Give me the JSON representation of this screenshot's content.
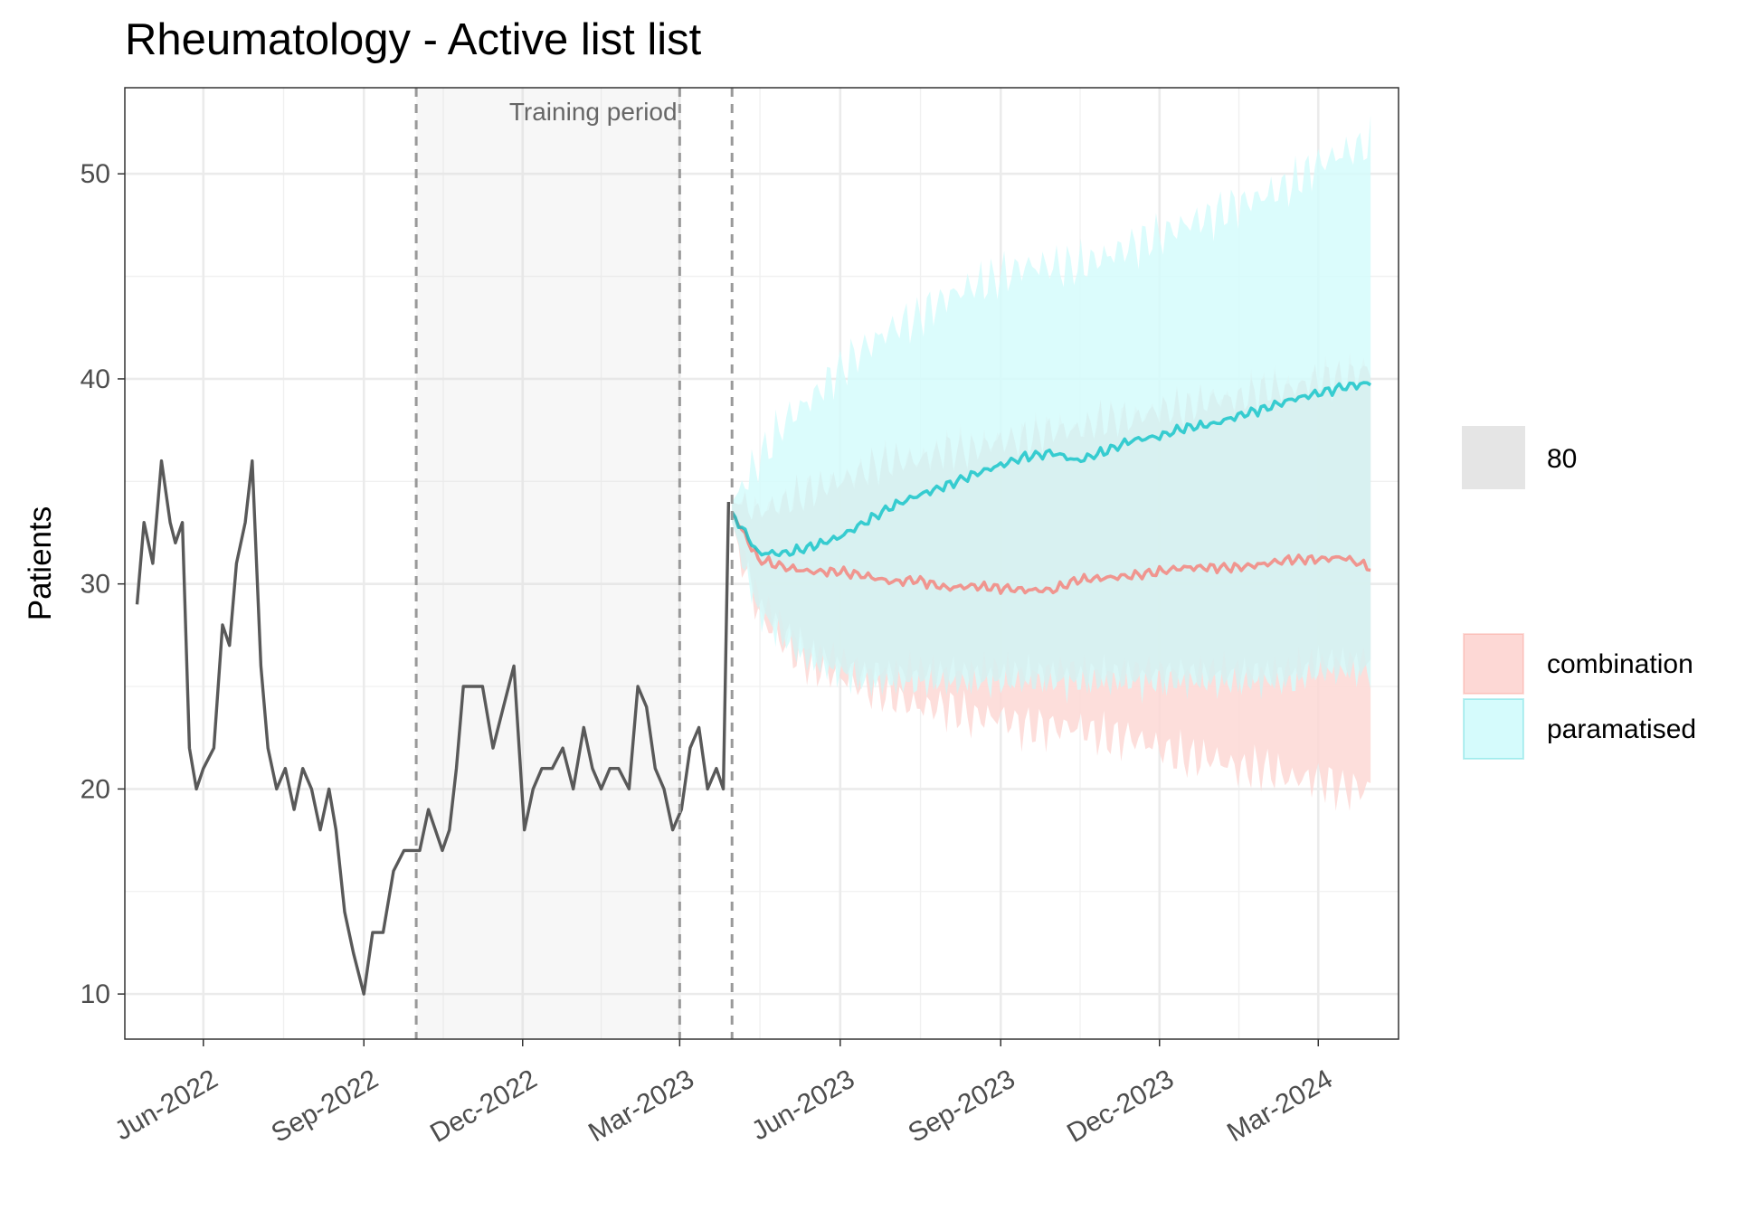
{
  "chart_data": {
    "type": "line",
    "title": "Rheumatology - Active list list",
    "xlabel": "",
    "ylabel": "Patients",
    "x_ticks": [
      "Jun-2022",
      "Sep-2022",
      "Dec-2022",
      "Mar-2023",
      "Jun-2023",
      "Sep-2023",
      "Dec-2023",
      "Mar-2024"
    ],
    "x_tick_dates": [
      "2022-06-01",
      "2022-09-01",
      "2022-12-01",
      "2023-03-01",
      "2023-06-01",
      "2023-09-01",
      "2023-12-01",
      "2024-03-01"
    ],
    "xlim": [
      "2022-04-17",
      "2024-04-16"
    ],
    "y_ticks": [
      "10",
      "20",
      "30",
      "40",
      "50"
    ],
    "ylim": [
      7.8,
      54.2
    ],
    "grid": true,
    "legend_position": "right",
    "annotation": {
      "text": "Training period",
      "start": "2022-10-01",
      "end": "2023-03-01"
    },
    "vlines": [
      "2022-10-01",
      "2023-03-01",
      "2023-03-31"
    ],
    "observed": {
      "color": "#595959",
      "dates": [
        "2022-04-24",
        "2022-04-28",
        "2022-05-03",
        "2022-05-08",
        "2022-05-13",
        "2022-05-16",
        "2022-05-20",
        "2022-05-24",
        "2022-05-28",
        "2022-06-01",
        "2022-06-07",
        "2022-06-12",
        "2022-06-16",
        "2022-06-20",
        "2022-06-25",
        "2022-06-29",
        "2022-07-04",
        "2022-07-08",
        "2022-07-13",
        "2022-07-18",
        "2022-07-23",
        "2022-07-28",
        "2022-08-02",
        "2022-08-07",
        "2022-08-12",
        "2022-08-16",
        "2022-08-21",
        "2022-08-26",
        "2022-09-01",
        "2022-09-06",
        "2022-09-12",
        "2022-09-18",
        "2022-09-24",
        "2022-09-29",
        "2022-10-03",
        "2022-10-08",
        "2022-10-12",
        "2022-10-16",
        "2022-10-20",
        "2022-10-24",
        "2022-10-28",
        "2022-11-02",
        "2022-11-08",
        "2022-11-14",
        "2022-11-20",
        "2022-11-26",
        "2022-12-02",
        "2022-12-07",
        "2022-12-12",
        "2022-12-18",
        "2022-12-24",
        "2022-12-30",
        "2023-01-05",
        "2023-01-10",
        "2023-01-15",
        "2023-01-20",
        "2023-01-25",
        "2023-01-31",
        "2023-02-05",
        "2023-02-10",
        "2023-02-15",
        "2023-02-20",
        "2023-02-25",
        "2023-03-02",
        "2023-03-07",
        "2023-03-12",
        "2023-03-17",
        "2023-03-22",
        "2023-03-26",
        "2023-03-29"
      ],
      "values": [
        29,
        33,
        31,
        36,
        33,
        32,
        33,
        22,
        20,
        21,
        22,
        28,
        27,
        31,
        33,
        36,
        26,
        22,
        20,
        21,
        19,
        21,
        20,
        18,
        20,
        18,
        14,
        12,
        10,
        13,
        13,
        16,
        17,
        17,
        17,
        19,
        18,
        17,
        18,
        21,
        25,
        25,
        25,
        22,
        24,
        26,
        18,
        20,
        21,
        21,
        22,
        20,
        23,
        21,
        20,
        21,
        21,
        20,
        25,
        24,
        21,
        20,
        18,
        19,
        22,
        23,
        20,
        21,
        20,
        34
      ]
    },
    "series": [
      {
        "name": "combination",
        "color": "#F8766D",
        "band_color": "#FDD8D5",
        "dates": [
          "2023-03-31",
          "2023-04-15",
          "2023-05-01",
          "2023-05-15",
          "2023-06-01",
          "2023-06-15",
          "2023-07-01",
          "2023-07-15",
          "2023-08-01",
          "2023-08-15",
          "2023-09-01",
          "2023-09-15",
          "2023-10-01",
          "2023-10-15",
          "2023-11-01",
          "2023-11-15",
          "2023-12-01",
          "2023-12-15",
          "2024-01-01",
          "2024-01-15",
          "2024-02-01",
          "2024-02-15",
          "2024-03-01",
          "2024-03-15",
          "2024-03-31"
        ],
        "values": [
          33.5,
          31.2,
          30.8,
          30.6,
          30.6,
          30.4,
          30.1,
          30.2,
          29.8,
          29.9,
          29.8,
          29.7,
          29.7,
          30.2,
          30.3,
          30.4,
          30.6,
          30.8,
          30.8,
          30.8,
          31.0,
          31.2,
          31.2,
          31.3,
          30.8
        ],
        "lower": [
          33.0,
          28.5,
          27.0,
          26.0,
          25.5,
          25.0,
          24.5,
          24.0,
          24.0,
          23.5,
          23.5,
          23.0,
          23.0,
          23.0,
          22.5,
          22.5,
          22.0,
          21.5,
          21.5,
          21.0,
          21.0,
          20.5,
          20.5,
          20.0,
          20.0
        ],
        "upper": [
          34.0,
          33.5,
          34.0,
          34.5,
          35.0,
          35.5,
          36.0,
          36.0,
          36.5,
          36.5,
          37.0,
          37.0,
          37.5,
          37.5,
          38.0,
          38.0,
          38.5,
          38.5,
          39.0,
          39.0,
          39.5,
          39.5,
          40.0,
          40.0,
          40.5
        ]
      },
      {
        "name": "paramatised",
        "color": "#00BFC4",
        "band_color": "#D5FBFC",
        "dates": [
          "2023-03-31",
          "2023-04-15",
          "2023-05-01",
          "2023-05-15",
          "2023-06-01",
          "2023-06-15",
          "2023-07-01",
          "2023-07-15",
          "2023-08-01",
          "2023-08-15",
          "2023-09-01",
          "2023-09-15",
          "2023-10-01",
          "2023-10-15",
          "2023-11-01",
          "2023-11-15",
          "2023-12-01",
          "2023-12-15",
          "2024-01-01",
          "2024-01-15",
          "2024-02-01",
          "2024-02-15",
          "2024-03-01",
          "2024-03-15",
          "2024-03-31"
        ],
        "values": [
          33.5,
          31.5,
          31.5,
          31.8,
          32.3,
          33.0,
          33.8,
          34.3,
          34.8,
          35.3,
          35.8,
          36.2,
          36.4,
          36.0,
          36.5,
          37.0,
          37.2,
          37.6,
          37.8,
          38.2,
          38.6,
          39.0,
          39.3,
          39.6,
          39.8
        ],
        "lower": [
          33.0,
          29.0,
          27.5,
          26.5,
          26.0,
          25.5,
          25.5,
          25.5,
          25.5,
          25.5,
          25.5,
          25.5,
          25.5,
          25.5,
          25.5,
          25.5,
          25.5,
          25.5,
          25.5,
          25.5,
          25.5,
          25.5,
          26.0,
          26.0,
          26.0
        ],
        "upper": [
          34.0,
          36.0,
          38.0,
          39.0,
          40.5,
          41.5,
          42.5,
          43.0,
          44.0,
          44.5,
          45.0,
          45.5,
          45.5,
          45.5,
          46.0,
          46.5,
          47.0,
          47.5,
          48.0,
          48.5,
          49.0,
          49.5,
          50.5,
          51.0,
          51.5
        ]
      }
    ],
    "legend": {
      "interval_label": "80",
      "interval_color": "#E5E5E5",
      "model_entries": [
        "combination",
        "paramatised"
      ]
    }
  }
}
